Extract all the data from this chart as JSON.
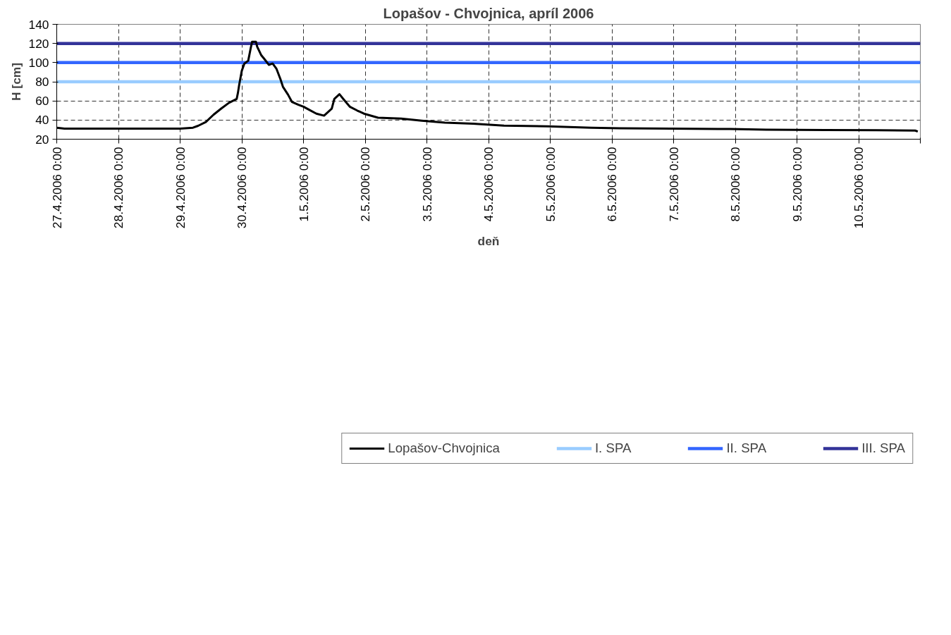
{
  "chart_data": {
    "type": "line",
    "title": "Lopašov - Chvojnica, apríl 2006",
    "xlabel": "deň",
    "ylabel": "H [cm]",
    "xlim": [
      "2006-04-27T00:00",
      "2006-05-11T00:00"
    ],
    "xticks": [
      {
        "value": "2006-04-27T00:00",
        "label": "27.4.2006 0:00"
      },
      {
        "value": "2006-04-28T00:00",
        "label": "28.4.2006 0:00"
      },
      {
        "value": "2006-04-29T00:00",
        "label": "29.4.2006 0:00"
      },
      {
        "value": "2006-04-30T00:00",
        "label": "30.4.2006 0:00"
      },
      {
        "value": "2006-05-01T00:00",
        "label": "1.5.2006 0:00"
      },
      {
        "value": "2006-05-02T00:00",
        "label": "2.5.2006 0:00"
      },
      {
        "value": "2006-05-03T00:00",
        "label": "3.5.2006 0:00"
      },
      {
        "value": "2006-05-04T00:00",
        "label": "4.5.2006 0:00"
      },
      {
        "value": "2006-05-05T00:00",
        "label": "5.5.2006 0:00"
      },
      {
        "value": "2006-05-06T00:00",
        "label": "6.5.2006 0:00"
      },
      {
        "value": "2006-05-07T00:00",
        "label": "7.5.2006 0:00"
      },
      {
        "value": "2006-05-08T00:00",
        "label": "8.5.2006 0:00"
      },
      {
        "value": "2006-05-09T00:00",
        "label": "9.5.2006 0:00"
      },
      {
        "value": "2006-05-10T00:00",
        "label": "10.5.2006 0:00"
      },
      {
        "value": "2006-05-11T00:00",
        "label": null
      }
    ],
    "ylim": [
      20,
      140
    ],
    "yticks": [
      20,
      40,
      60,
      80,
      100,
      120,
      140
    ],
    "grid": true,
    "legend": "bottom",
    "series": [
      {
        "name": "Lopašov-Chvojnica",
        "color": "#000000",
        "x": [
          "2006-04-27T00:00",
          "2006-04-27T03:00",
          "2006-04-27T10:00",
          "2006-04-29T00:00",
          "2006-04-29T05:00",
          "2006-04-29T07:00",
          "2006-04-29T10:00",
          "2006-04-29T13:00",
          "2006-04-29T16:00",
          "2006-04-29T19:00",
          "2006-04-29T22:00",
          "2006-04-29T22:30",
          "2006-04-29T23:00",
          "2006-04-30T00:00",
          "2006-04-30T01:00",
          "2006-04-30T02:30",
          "2006-04-30T03:30",
          "2006-04-30T04:00",
          "2006-04-30T05:30",
          "2006-04-30T06:00",
          "2006-04-30T07:30",
          "2006-04-30T09:00",
          "2006-04-30T10:30",
          "2006-04-30T12:00",
          "2006-04-30T13:30",
          "2006-04-30T15:00",
          "2006-04-30T16:00",
          "2006-04-30T18:00",
          "2006-04-30T19:30",
          "2006-04-30T22:00",
          "2006-05-01T00:00",
          "2006-05-01T02:00",
          "2006-05-01T05:00",
          "2006-05-01T08:00",
          "2006-05-01T11:00",
          "2006-05-01T12:00",
          "2006-05-01T14:00",
          "2006-05-01T15:30",
          "2006-05-01T18:00",
          "2006-05-01T21:00",
          "2006-05-01T23:30",
          "2006-05-02T05:00",
          "2006-05-02T14:00",
          "2006-05-02T22:00",
          "2006-05-03T07:00",
          "2006-05-03T18:00",
          "2006-05-04T06:00",
          "2006-05-04T23:00",
          "2006-05-05T16:00",
          "2006-05-06T03:00",
          "2006-05-06T23:00",
          "2006-05-07T22:00",
          "2006-05-08T12:00",
          "2006-05-09T11:00",
          "2006-05-10T07:00",
          "2006-05-10T22:00",
          "2006-05-10T23:00"
        ],
        "values": [
          32,
          31,
          31,
          31,
          32,
          34,
          38,
          45.6,
          52,
          58,
          62,
          68.5,
          77,
          91.5,
          99,
          102,
          115.5,
          121.7,
          121.7,
          116.5,
          108,
          103,
          97.7,
          99,
          93.5,
          83,
          74.8,
          66.5,
          59,
          56,
          54,
          51,
          46.7,
          44.6,
          52,
          62,
          67,
          62,
          54,
          49.8,
          46.7,
          42.5,
          41.5,
          39.4,
          37.3,
          36.2,
          34.2,
          33.5,
          32,
          31.5,
          31,
          30.6,
          30,
          29.6,
          29.4,
          29,
          28
        ]
      },
      {
        "name": "I. SPA",
        "color": "#99ccff",
        "x": [
          "2006-04-27T00:00",
          "2006-05-11T00:00"
        ],
        "values": [
          80,
          80
        ]
      },
      {
        "name": "II. SPA",
        "color": "#3366ff",
        "x": [
          "2006-04-27T00:00",
          "2006-05-11T00:00"
        ],
        "values": [
          100,
          100
        ]
      },
      {
        "name": "III. SPA",
        "color": "#333399",
        "x": [
          "2006-04-27T00:00",
          "2006-05-11T00:00"
        ],
        "values": [
          120,
          120
        ]
      }
    ]
  }
}
